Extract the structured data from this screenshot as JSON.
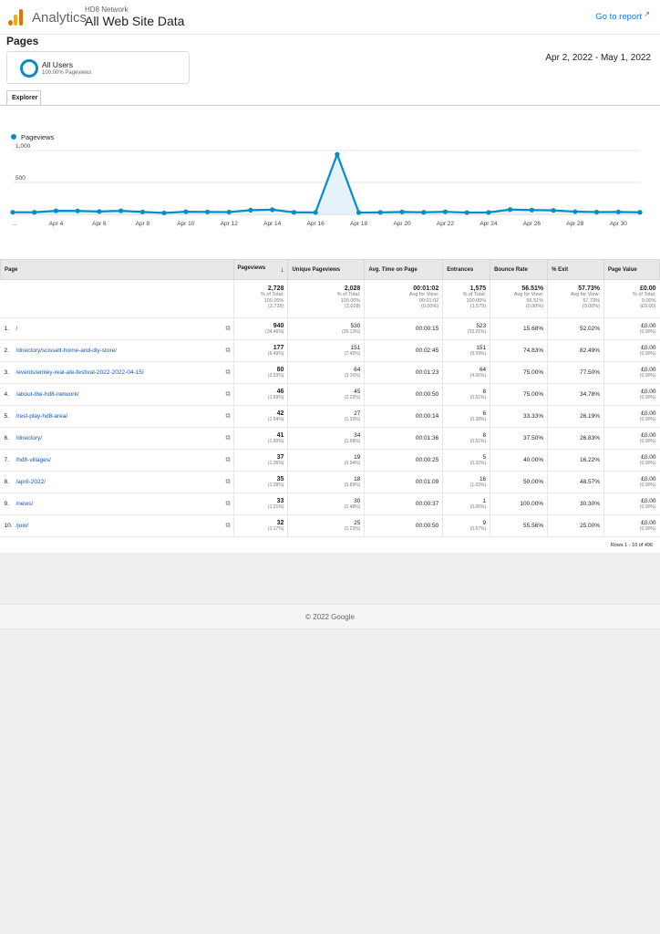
{
  "header": {
    "brand": "Analytics",
    "account": "HD8 Network",
    "property": "All Web Site Data",
    "go_to_report": "Go to report"
  },
  "page_title": "Pages",
  "segment": {
    "name": "All Users",
    "sub": "100.00% Pageviews"
  },
  "date_range": "Apr 2, 2022 - May 1, 2022",
  "tab": "Explorer",
  "colors": {
    "accent": "#058dc7",
    "link": "#1155cc",
    "header_link": "#1a73e8"
  },
  "chart_data": {
    "type": "line",
    "series": [
      {
        "name": "Pageviews",
        "values": [
          33,
          32,
          55,
          54,
          45,
          55,
          38,
          22,
          41,
          38,
          36,
          66,
          73,
          32,
          30,
          940,
          28,
          30,
          38,
          32,
          40,
          28,
          30,
          75,
          68,
          62,
          42,
          36,
          38,
          32
        ]
      }
    ],
    "x_tick_labels": [
      "...",
      "Apr 4",
      "Apr 6",
      "Apr 8",
      "Apr 10",
      "Apr 12",
      "Apr 14",
      "Apr 16",
      "Apr 18",
      "Apr 20",
      "Apr 22",
      "Apr 24",
      "Apr 26",
      "Apr 28",
      "Apr 30"
    ],
    "y_ticks": [
      "1,000",
      "500"
    ],
    "ylim": [
      0,
      1000
    ],
    "grid": true,
    "legend": "top-left"
  },
  "table": {
    "headers": [
      "Page",
      "Pageviews",
      "Unique Pageviews",
      "Avg. Time on Page",
      "Entrances",
      "Bounce Rate",
      "% Exit",
      "Page Value"
    ],
    "sort_icon": "arrow-down-icon",
    "totals": [
      {
        "value": "2,728",
        "l1": "% of Total:",
        "l2": "100.00%",
        "l3": "(2,728)"
      },
      {
        "value": "2,028",
        "l1": "% of Total:",
        "l2": "100.00%",
        "l3": "(2,028)"
      },
      {
        "value": "00:01:02",
        "l1": "Avg for View:",
        "l2": "00:01:02",
        "l3": "(0.00%)"
      },
      {
        "value": "1,575",
        "l1": "% of Total:",
        "l2": "100.00%",
        "l3": "(1,575)"
      },
      {
        "value": "56.51%",
        "l1": "Avg for View:",
        "l2": "56.51%",
        "l3": "(0.00%)"
      },
      {
        "value": "57.73%",
        "l1": "Avg for View:",
        "l2": "57.73%",
        "l3": "(0.00%)"
      },
      {
        "value": "£0.00",
        "l1": "% of Total:",
        "l2": "0.00%",
        "l3": "(£0.00)"
      }
    ],
    "rows": [
      {
        "n": "1.",
        "page": "/",
        "pv": "940",
        "pvp": "(34.46%)",
        "upv": "530",
        "upvp": "(26.13%)",
        "time": "00:00:15",
        "ent": "523",
        "entp": "(33.21%)",
        "bounce": "15.68%",
        "exit": "52.02%",
        "val": "£0.00",
        "valp": "(0.00%)"
      },
      {
        "n": "2.",
        "page": "/directory/scissett-home-and-diy-store/",
        "pv": "177",
        "pvp": "(6.49%)",
        "upv": "151",
        "upvp": "(7.45%)",
        "time": "00:02:45",
        "ent": "151",
        "entp": "(9.59%)",
        "bounce": "74.83%",
        "exit": "82.49%",
        "val": "£0.00",
        "valp": "(0.00%)"
      },
      {
        "n": "3.",
        "page": "/events/emley-real-ale-festival-2022-2022-04-15/",
        "pv": "80",
        "pvp": "(2.93%)",
        "upv": "64",
        "upvp": "(3.16%)",
        "time": "00:01:23",
        "ent": "64",
        "entp": "(4.06%)",
        "bounce": "75.00%",
        "exit": "77.50%",
        "val": "£0.00",
        "valp": "(0.00%)"
      },
      {
        "n": "4.",
        "page": "/about-the-hd8-network/",
        "pv": "46",
        "pvp": "(1.69%)",
        "upv": "45",
        "upvp": "(2.22%)",
        "time": "00:00:50",
        "ent": "8",
        "entp": "(0.51%)",
        "bounce": "75.00%",
        "exit": "34.78%",
        "val": "£0.00",
        "valp": "(0.00%)"
      },
      {
        "n": "5.",
        "page": "/rest-play-hd8-area/",
        "pv": "42",
        "pvp": "(1.54%)",
        "upv": "27",
        "upvp": "(1.33%)",
        "time": "00:00:14",
        "ent": "6",
        "entp": "(0.38%)",
        "bounce": "33.33%",
        "exit": "26.19%",
        "val": "£0.00",
        "valp": "(0.00%)"
      },
      {
        "n": "6.",
        "page": "/directory/",
        "pv": "41",
        "pvp": "(1.50%)",
        "upv": "34",
        "upvp": "(1.68%)",
        "time": "00:01:36",
        "ent": "8",
        "entp": "(0.51%)",
        "bounce": "37.50%",
        "exit": "26.83%",
        "val": "£0.00",
        "valp": "(0.00%)"
      },
      {
        "n": "7.",
        "page": "/hd8-villages/",
        "pv": "37",
        "pvp": "(1.36%)",
        "upv": "19",
        "upvp": "(0.94%)",
        "time": "00:00:25",
        "ent": "5",
        "entp": "(0.32%)",
        "bounce": "40.00%",
        "exit": "16.22%",
        "val": "£0.00",
        "valp": "(0.00%)"
      },
      {
        "n": "8.",
        "page": "/april-2022/",
        "pv": "35",
        "pvp": "(1.28%)",
        "upv": "18",
        "upvp": "(0.89%)",
        "time": "00:01:09",
        "ent": "16",
        "entp": "(1.02%)",
        "bounce": "50.00%",
        "exit": "48.57%",
        "val": "£0.00",
        "valp": "(0.00%)"
      },
      {
        "n": "9.",
        "page": "/news/",
        "pv": "33",
        "pvp": "(1.21%)",
        "upv": "30",
        "upvp": "(1.48%)",
        "time": "00:00:37",
        "ent": "1",
        "entp": "(0.06%)",
        "bounce": "100.00%",
        "exit": "30.30%",
        "val": "£0.00",
        "valp": "(0.00%)"
      },
      {
        "n": "10.",
        "page": "/join/",
        "pv": "32",
        "pvp": "(1.17%)",
        "upv": "25",
        "upvp": "(1.23%)",
        "time": "00:00:50",
        "ent": "9",
        "entp": "(0.57%)",
        "bounce": "55.56%",
        "exit": "25.00%",
        "val": "£0.00",
        "valp": "(0.00%)"
      }
    ],
    "rows_label": "Rows 1 - 10 of 496"
  },
  "footer": "© 2022 Google"
}
